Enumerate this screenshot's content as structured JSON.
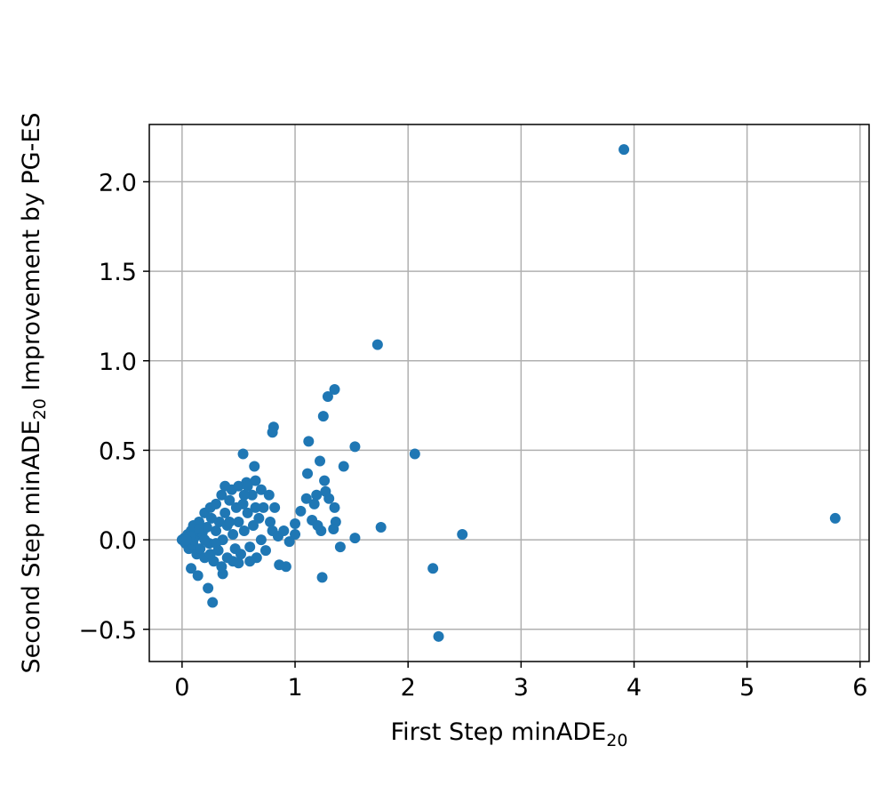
{
  "chart_data": {
    "type": "scatter",
    "xlabel": {
      "text": "First Step minADE",
      "subscript": "20"
    },
    "ylabel": {
      "text": "Second Step minADE",
      "subscript": "20",
      "suffix": " Improvement by PG-ES"
    },
    "color": "#1f77b4",
    "xlim": [
      -0.29,
      6.08
    ],
    "ylim": [
      -0.68,
      2.32
    ],
    "xticks": [
      0,
      1,
      2,
      3,
      4,
      5,
      6
    ],
    "yticks": [
      {
        "value": -0.5,
        "label": "−0.5"
      },
      {
        "value": 0,
        "label": "0.0"
      },
      0.5,
      {
        "value": 1,
        "label": "1.0"
      },
      1.5,
      {
        "value": 2,
        "label": "2.0"
      }
    ],
    "grid": true,
    "x": [
      3.91,
      1.73,
      1.35,
      1.29,
      1.25,
      0.81,
      0.8,
      1.12,
      1.53,
      2.06,
      0.54,
      1.43,
      0.64,
      1.22,
      1.11,
      5.78,
      2.48,
      1.76,
      1.53,
      2.22,
      2.27,
      1.24,
      0.92,
      0.86,
      0.27,
      0.23,
      0.14,
      0.08,
      0.36,
      1.4,
      1.36,
      1.34,
      1.3,
      1.27,
      1.26,
      1.19,
      1.17,
      1.15,
      1.1,
      1.05,
      1.0,
      1.0,
      1.35,
      1.23,
      1.2,
      0.77,
      0.82,
      0,
      0.02,
      0.03,
      0.05,
      0.06,
      0.08,
      0.1,
      0.1,
      0.12,
      0.13,
      0.15,
      0.16,
      0.18,
      0.2,
      0.2,
      0.22,
      0.24,
      0.25,
      0.26,
      0.28,
      0.3,
      0.3,
      0.32,
      0.33,
      0.35,
      0.36,
      0.38,
      0.4,
      0.4,
      0.42,
      0.44,
      0.45,
      0.47,
      0.48,
      0.5,
      0.5,
      0.52,
      0.54,
      0.55,
      0.57,
      0.58,
      0.6,
      0.62,
      0.63,
      0.65,
      0.66,
      0.68,
      0.7,
      0.7,
      0.72,
      0.74,
      0.78,
      0.8,
      0.85,
      0.9,
      0.95,
      0.6,
      0.5,
      0.45,
      0.35,
      0.25,
      0.15,
      0.1,
      0.07,
      0.04,
      0.38,
      0.42,
      0.55,
      0.3,
      0.2,
      0.65,
      0.58
    ],
    "values": [
      2.18,
      1.09,
      0.84,
      0.8,
      0.69,
      0.63,
      0.6,
      0.55,
      0.52,
      0.48,
      0.48,
      0.41,
      0.41,
      0.44,
      0.37,
      0.12,
      0.03,
      0.07,
      0.01,
      -0.16,
      -0.54,
      -0.21,
      -0.15,
      -0.14,
      -0.35,
      -0.27,
      -0.2,
      -0.16,
      -0.19,
      -0.04,
      0.1,
      0.06,
      0.23,
      0.27,
      0.33,
      0.25,
      0.2,
      0.11,
      0.23,
      0.16,
      0.09,
      0.03,
      0.18,
      0.05,
      0.08,
      0.25,
      0.18,
      0,
      0.01,
      -0.02,
      0.03,
      -0.05,
      0.05,
      -0.03,
      0.08,
      0.02,
      -0.08,
      0.1,
      -0.05,
      0.04,
      0.15,
      -0.1,
      0.07,
      -0.02,
      0.18,
      0.12,
      -0.12,
      0.05,
      0.2,
      -0.06,
      0.1,
      0.25,
      0,
      0.15,
      -0.1,
      0.08,
      0.22,
      0.28,
      0.03,
      -0.05,
      0.18,
      0.3,
      0.1,
      -0.08,
      0.2,
      0.05,
      0.32,
      0.15,
      -0.04,
      0.25,
      0.08,
      0.33,
      -0.1,
      0.12,
      0.28,
      0,
      0.18,
      -0.06,
      0.1,
      0.05,
      0.02,
      0.05,
      -0.01,
      -0.12,
      -0.13,
      -0.12,
      -0.15,
      -0.08,
      0.06,
      0,
      0.02,
      0,
      0.3,
      0.1,
      0.25,
      -0.02,
      0,
      0.18,
      0.3
    ]
  }
}
